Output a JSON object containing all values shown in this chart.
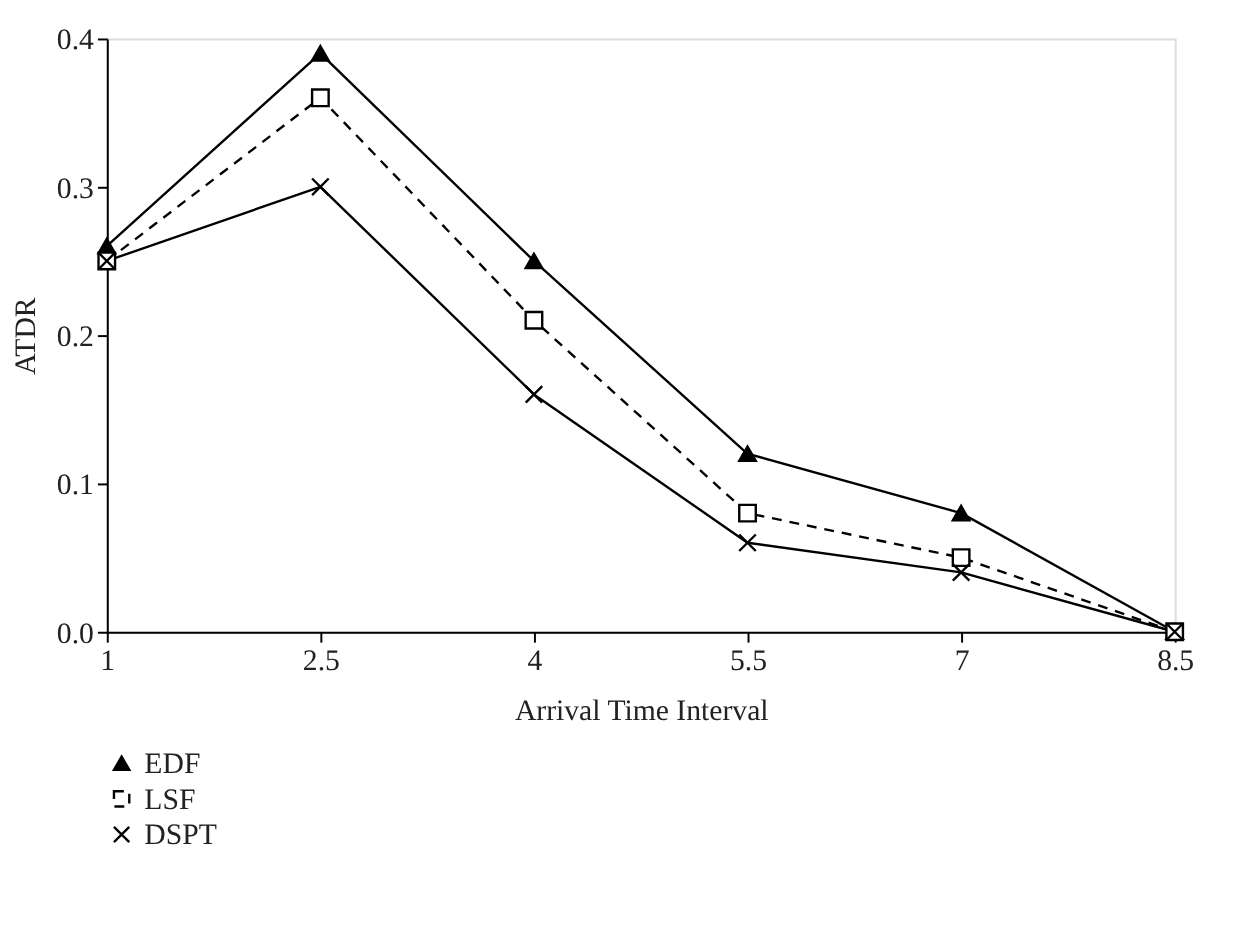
{
  "chart_data": {
    "type": "line",
    "xlabel": "Arrival Time Interval",
    "ylabel": "ATDR",
    "x": [
      1,
      2.5,
      4,
      5.5,
      7,
      8.5
    ],
    "xlim": [
      1,
      8.5
    ],
    "xticks": [
      1,
      2.5,
      4,
      5.5,
      7,
      8.5
    ],
    "ylim": [
      0,
      0.4
    ],
    "yticks": [
      {
        "value": 0,
        "label": "0.0"
      },
      0.1,
      0.2,
      0.3,
      0.4
    ],
    "grid": false,
    "legend": "bottom left",
    "series": [
      {
        "name": "EDF",
        "color": "#000000",
        "marker": "triangle",
        "line_style": "solid",
        "values": [
          0.26,
          0.39,
          0.25,
          0.12,
          0.08,
          0
        ]
      },
      {
        "name": "LSF",
        "color": "#000000",
        "marker": "square",
        "line_style": "dashed",
        "values": [
          0.25,
          0.36,
          0.21,
          0.08,
          0.05,
          0
        ]
      },
      {
        "name": "DSPT",
        "color": "#000000",
        "marker": "cross",
        "line_style": "solid",
        "values": [
          0.25,
          0.3,
          0.16,
          0.06,
          0.04,
          0
        ]
      }
    ]
  }
}
